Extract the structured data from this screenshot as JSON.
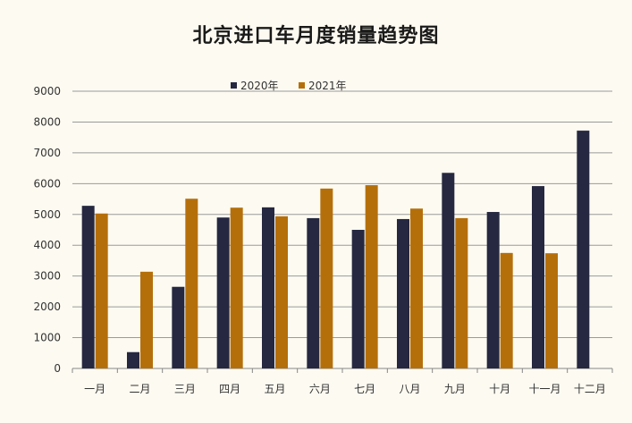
{
  "chart_data": {
    "type": "bar",
    "title": "北京进口车月度销量趋势图",
    "categories": [
      "一月",
      "二月",
      "三月",
      "四月",
      "五月",
      "六月",
      "七月",
      "八月",
      "九月",
      "十月",
      "十一月",
      "十二月"
    ],
    "series": [
      {
        "name": "2020年",
        "values": [
          5280,
          530,
          2650,
          4900,
          5230,
          4880,
          4500,
          4850,
          6350,
          5080,
          5920,
          7720
        ],
        "color": "#262841"
      },
      {
        "name": "2021年",
        "values": [
          5030,
          3140,
          5510,
          5220,
          4940,
          5840,
          5950,
          5190,
          4880,
          3750,
          3740,
          null
        ],
        "color": "#b56f0a"
      }
    ],
    "ylim": [
      0,
      9000
    ],
    "yticks": [
      0,
      1000,
      2000,
      3000,
      4000,
      5000,
      6000,
      7000,
      8000,
      9000
    ],
    "grid": true,
    "legend_position": "top"
  }
}
